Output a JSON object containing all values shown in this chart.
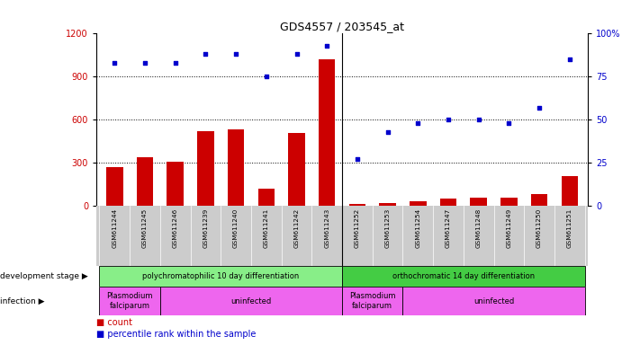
{
  "title": "GDS4557 / 203545_at",
  "samples": [
    "GSM611244",
    "GSM611245",
    "GSM611246",
    "GSM611239",
    "GSM611240",
    "GSM611241",
    "GSM611242",
    "GSM611243",
    "GSM611252",
    "GSM611253",
    "GSM611254",
    "GSM611247",
    "GSM611248",
    "GSM611249",
    "GSM611250",
    "GSM611251"
  ],
  "counts": [
    270,
    340,
    310,
    520,
    530,
    120,
    510,
    1020,
    15,
    20,
    30,
    50,
    60,
    60,
    80,
    210
  ],
  "percentiles": [
    83,
    83,
    83,
    88,
    88,
    75,
    88,
    93,
    27,
    43,
    48,
    50,
    50,
    48,
    57,
    85
  ],
  "ylim_left": [
    0,
    1200
  ],
  "ylim_right": [
    0,
    100
  ],
  "yticks_left": [
    0,
    300,
    600,
    900,
    1200
  ],
  "yticks_right": [
    0,
    25,
    50,
    75,
    100
  ],
  "bar_color": "#cc0000",
  "dot_color": "#0000cc",
  "grid_color": "#333333",
  "dev_stage_color1": "#88ee88",
  "dev_stage_color2": "#44cc44",
  "infection_color": "#ee66ee",
  "bg_color": "#ffffff",
  "tick_area_bg": "#cccccc",
  "dev_stage_label": "development stage",
  "infection_label": "infection",
  "legend_count_label": "count",
  "legend_percentile_label": "percentile rank within the sample",
  "sep_index": 8,
  "n_samples": 16
}
